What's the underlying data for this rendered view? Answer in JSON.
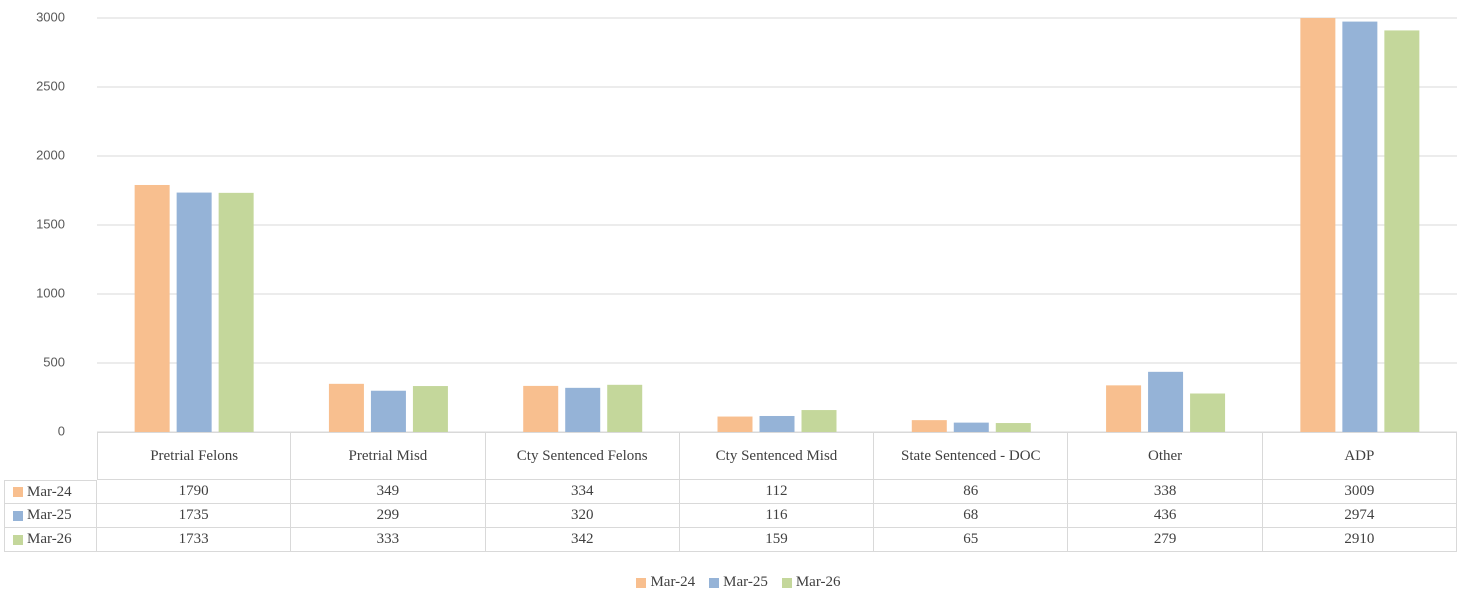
{
  "chart_data": {
    "type": "bar",
    "categories": [
      "Pretrial Felons",
      "Pretrial Misd",
      "Cty Sentenced Felons",
      "Cty Sentenced Misd",
      "State Sentenced - DOC",
      "Other",
      "ADP"
    ],
    "series": [
      {
        "name": "Mar-24",
        "color": "#F8BF8F",
        "values": [
          1790,
          349,
          334,
          112,
          86,
          338,
          3009
        ]
      },
      {
        "name": "Mar-25",
        "color": "#95B3D7",
        "values": [
          1735,
          299,
          320,
          116,
          68,
          436,
          2974
        ]
      },
      {
        "name": "Mar-26",
        "color": "#C4D79B",
        "values": [
          1733,
          333,
          342,
          159,
          65,
          279,
          2910
        ]
      }
    ],
    "ylim": [
      0,
      3000
    ],
    "yticks": [
      0,
      500,
      1000,
      1500,
      2000,
      2500,
      3000
    ],
    "grid": true,
    "legend": "bottom",
    "data_table": true
  }
}
